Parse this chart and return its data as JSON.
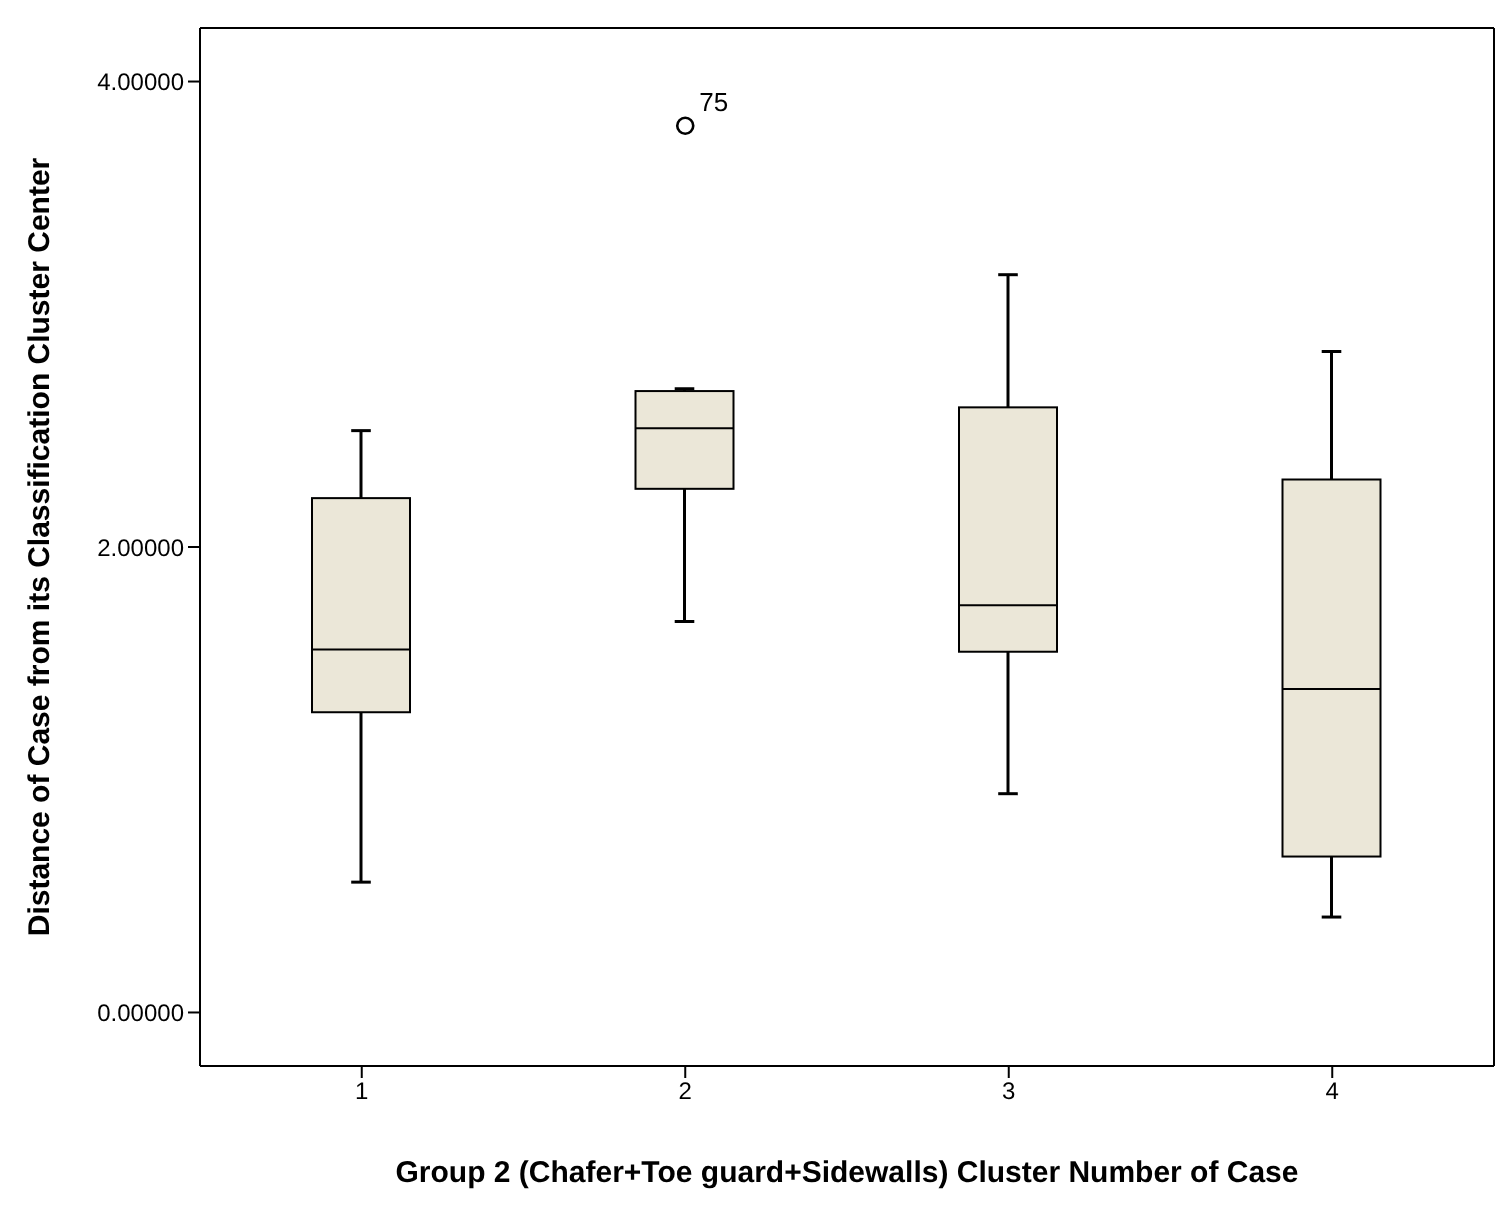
{
  "chart_data": {
    "type": "box",
    "xlabel": "Group 2 (Chafer+Toe guard+Sidewalls) Cluster Number of Case",
    "ylabel": "Distance of Case from its Classification Cluster Center",
    "categories": [
      "1",
      "2",
      "3",
      "4"
    ],
    "color": "#ebe7d8",
    "boxes": [
      {
        "low": 0.56,
        "q1": 1.29,
        "median": 1.56,
        "q3": 2.21,
        "high": 2.5
      },
      {
        "low": 1.68,
        "q1": 2.25,
        "median": 2.51,
        "q3": 2.67,
        "high": 2.68,
        "outliers": [
          3.81
        ]
      },
      {
        "low": 0.94,
        "q1": 1.55,
        "median": 1.75,
        "q3": 2.6,
        "high": 3.17
      },
      {
        "low": 0.41,
        "q1": 0.67,
        "median": 1.39,
        "q3": 2.29,
        "high": 2.84
      }
    ],
    "ylim": [
      -0.23,
      4.23
    ],
    "yticks": [
      {
        "value": 0,
        "label": "0.00000"
      },
      {
        "value": 2,
        "label": "2.00000"
      },
      {
        "value": 4,
        "label": "4.00000"
      }
    ],
    "annotations": [
      "75"
    ]
  }
}
